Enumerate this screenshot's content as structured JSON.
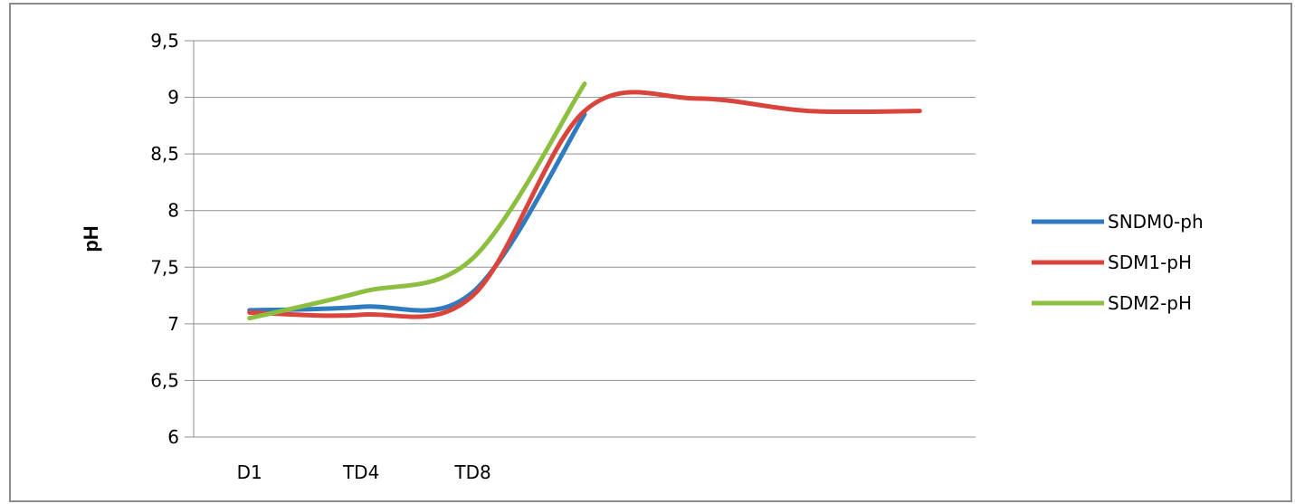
{
  "chart_data": {
    "type": "line",
    "categories": [
      "D1",
      "TD4",
      "TD8",
      "",
      "",
      "",
      ""
    ],
    "ylabel": "pH",
    "xlabel": "",
    "ylim": [
      6,
      9.5
    ],
    "y_ticks": [
      "6",
      "6,5",
      "7",
      "7,5",
      "8",
      "8,5",
      "9",
      "9,5"
    ],
    "y_tick_values": [
      6,
      6.5,
      7,
      7.5,
      8,
      8.5,
      9,
      9.5
    ],
    "grid": "horizontal",
    "smoothed": true,
    "legend_position": "right",
    "series": [
      {
        "name": "SNDM0-ph",
        "color": "#2e7cbf",
        "values": [
          7.12,
          7.15,
          7.28,
          8.85,
          null,
          null,
          null
        ]
      },
      {
        "name": "SDM1-pH",
        "color": "#d9453d",
        "values": [
          7.1,
          7.08,
          7.25,
          8.88,
          8.99,
          8.88,
          8.88
        ]
      },
      {
        "name": "SDM2-pH",
        "color": "#8cbf3f",
        "values": [
          7.05,
          7.28,
          7.58,
          9.12,
          null,
          null,
          null
        ]
      }
    ]
  }
}
